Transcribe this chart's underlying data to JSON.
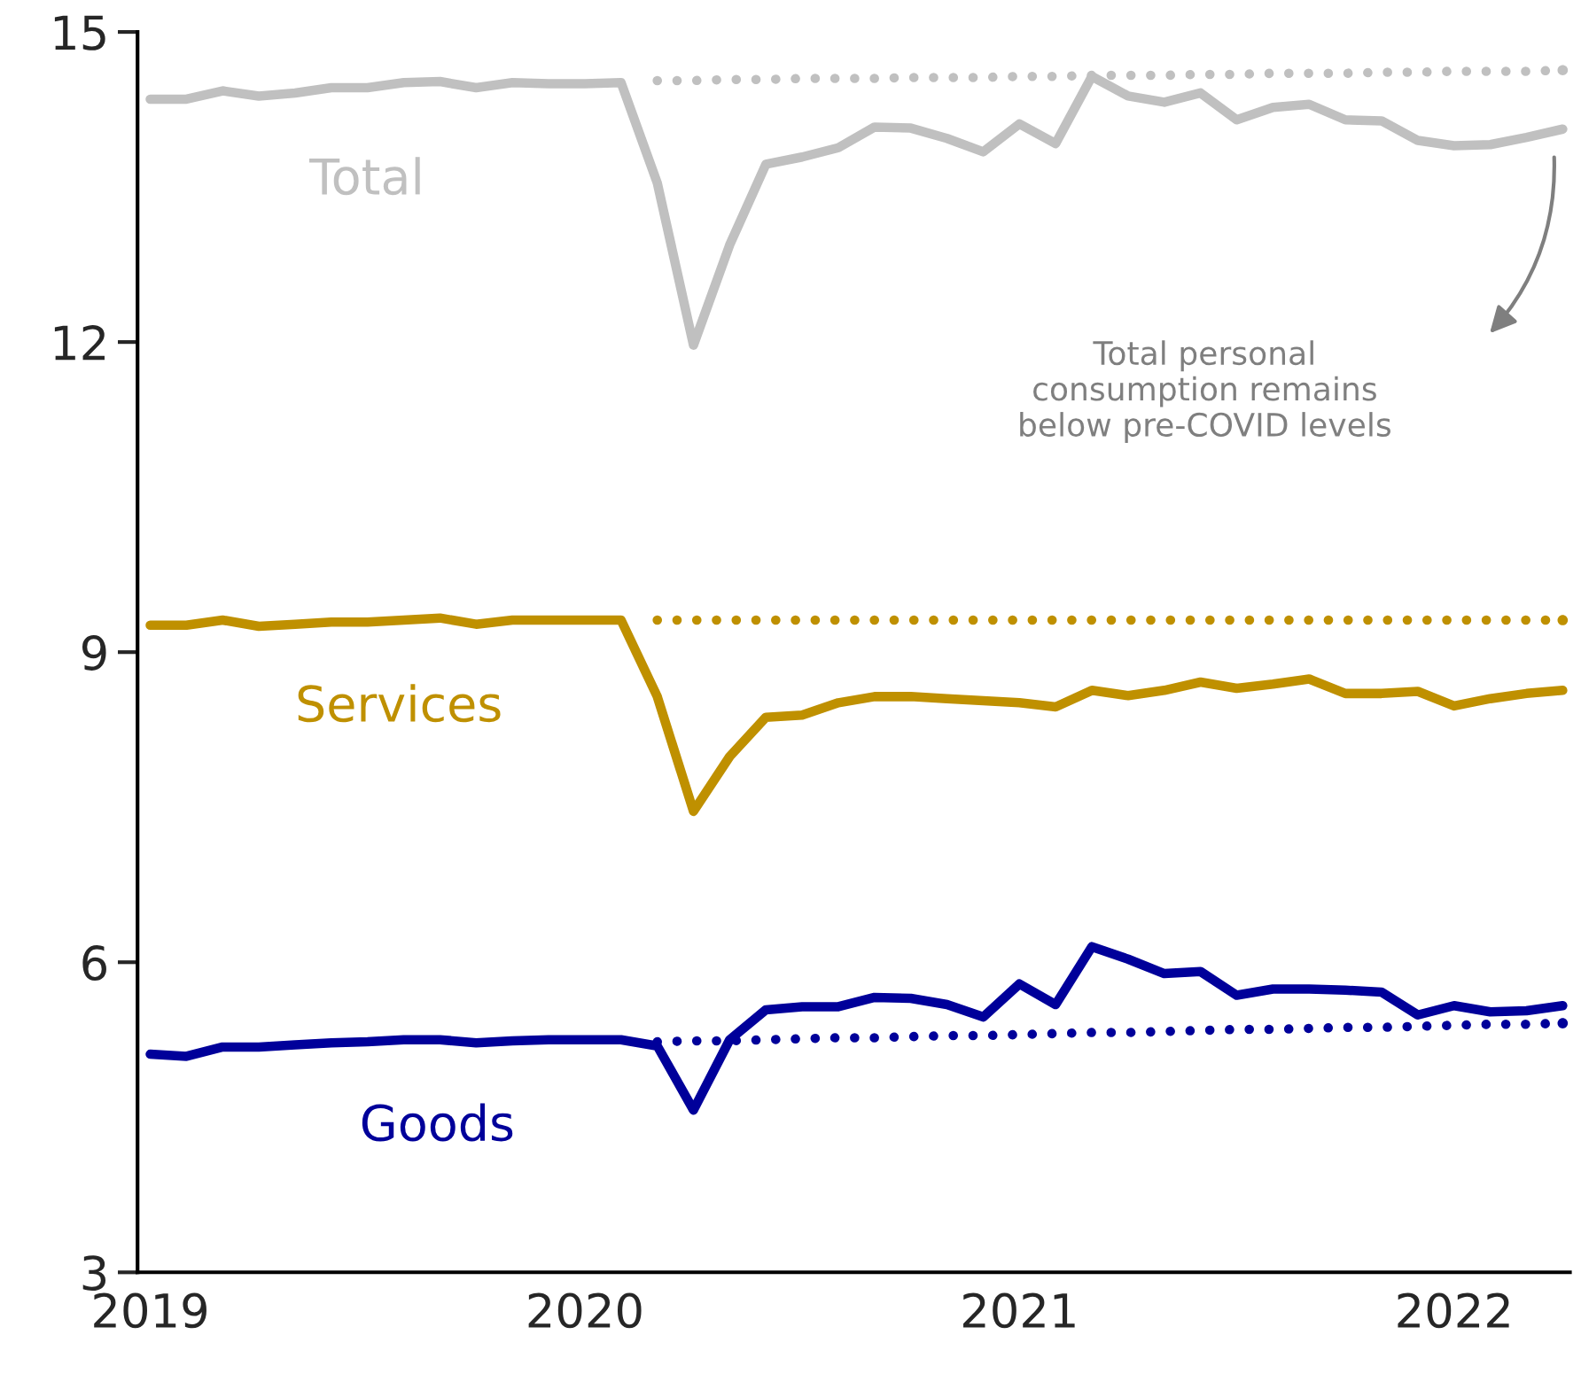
{
  "chart_data": {
    "type": "line",
    "categories": [
      "2019",
      null,
      null,
      null,
      null,
      null,
      null,
      null,
      null,
      null,
      null,
      null,
      "2020",
      null,
      null,
      null,
      null,
      null,
      null,
      null,
      null,
      null,
      null,
      null,
      "2021",
      null,
      null,
      null,
      null,
      null,
      null,
      null,
      null,
      null,
      null,
      null,
      "2022",
      null,
      null,
      null
    ],
    "ylim": [
      3,
      15
    ],
    "yticks": [
      3,
      6,
      9,
      12,
      15
    ],
    "grid": false,
    "legend": false,
    "marker": "none",
    "series": [
      {
        "name": "Total",
        "color": "#c0c0c0",
        "line_style": "solid",
        "values": [
          14.35,
          14.35,
          14.43,
          14.38,
          14.41,
          14.46,
          14.46,
          14.51,
          14.52,
          14.46,
          14.51,
          14.5,
          14.5,
          14.51,
          13.54,
          11.97,
          12.94,
          13.72,
          13.79,
          13.88,
          14.08,
          14.07,
          13.97,
          13.84,
          14.11,
          13.92,
          14.57,
          14.38,
          14.32,
          14.41,
          14.15,
          14.27,
          14.3,
          14.15,
          14.14,
          13.95,
          13.9,
          13.91,
          13.98,
          14.06
        ]
      },
      {
        "name": "Services",
        "color": "#bf9000",
        "line_style": "solid",
        "values": [
          9.26,
          9.26,
          9.31,
          9.25,
          9.27,
          9.29,
          9.29,
          9.31,
          9.33,
          9.27,
          9.31,
          9.31,
          9.31,
          9.31,
          8.57,
          7.46,
          7.99,
          8.37,
          8.39,
          8.51,
          8.57,
          8.57,
          8.55,
          8.53,
          8.51,
          8.47,
          8.63,
          8.58,
          8.63,
          8.71,
          8.65,
          8.69,
          8.74,
          8.6,
          8.6,
          8.62,
          8.48,
          8.55,
          8.6,
          8.63
        ]
      },
      {
        "name": "Goods",
        "color": "#00009a",
        "line_style": "solid",
        "values": [
          5.11,
          5.09,
          5.18,
          5.18,
          5.2,
          5.22,
          5.23,
          5.25,
          5.25,
          5.22,
          5.24,
          5.25,
          5.25,
          5.25,
          5.19,
          4.57,
          5.25,
          5.54,
          5.57,
          5.57,
          5.66,
          5.65,
          5.59,
          5.47,
          5.79,
          5.59,
          6.15,
          6.03,
          5.89,
          5.91,
          5.68,
          5.74,
          5.74,
          5.73,
          5.71,
          5.49,
          5.58,
          5.52,
          5.53,
          5.58
        ]
      },
      {
        "color": "#c0c0c0",
        "line_style": "dotted",
        "values": [
          null,
          null,
          null,
          null,
          null,
          null,
          null,
          null,
          null,
          null,
          null,
          null,
          null,
          null,
          14.53,
          14.53,
          14.54,
          14.54,
          14.55,
          14.55,
          14.55,
          14.56,
          14.56,
          14.56,
          14.57,
          14.57,
          14.58,
          14.58,
          14.58,
          14.59,
          14.59,
          14.6,
          14.6,
          14.6,
          14.61,
          14.61,
          14.62,
          14.62,
          14.62,
          14.63
        ]
      },
      {
        "color": "#bf9000",
        "line_style": "dotted",
        "values": [
          null,
          null,
          null,
          null,
          null,
          null,
          null,
          null,
          null,
          null,
          null,
          null,
          null,
          null,
          9.31,
          9.31,
          9.31,
          9.31,
          9.31,
          9.31,
          9.31,
          9.31,
          9.31,
          9.31,
          9.31,
          9.31,
          9.31,
          9.31,
          9.31,
          9.31,
          9.31,
          9.31,
          9.31,
          9.31,
          9.31,
          9.31,
          9.31,
          9.31,
          9.31,
          9.31
        ]
      },
      {
        "color": "#00009a",
        "line_style": "dotted",
        "values": [
          null,
          null,
          null,
          null,
          null,
          null,
          null,
          null,
          null,
          null,
          null,
          null,
          null,
          null,
          5.23,
          5.24,
          5.24,
          5.25,
          5.26,
          5.27,
          5.27,
          5.28,
          5.29,
          5.29,
          5.3,
          5.31,
          5.32,
          5.32,
          5.33,
          5.34,
          5.35,
          5.35,
          5.36,
          5.37,
          5.37,
          5.38,
          5.39,
          5.4,
          5.4,
          5.41
        ]
      }
    ],
    "annotations": [
      "Total personal\nconsumption remains\nbelow pre-COVID levels"
    ]
  }
}
